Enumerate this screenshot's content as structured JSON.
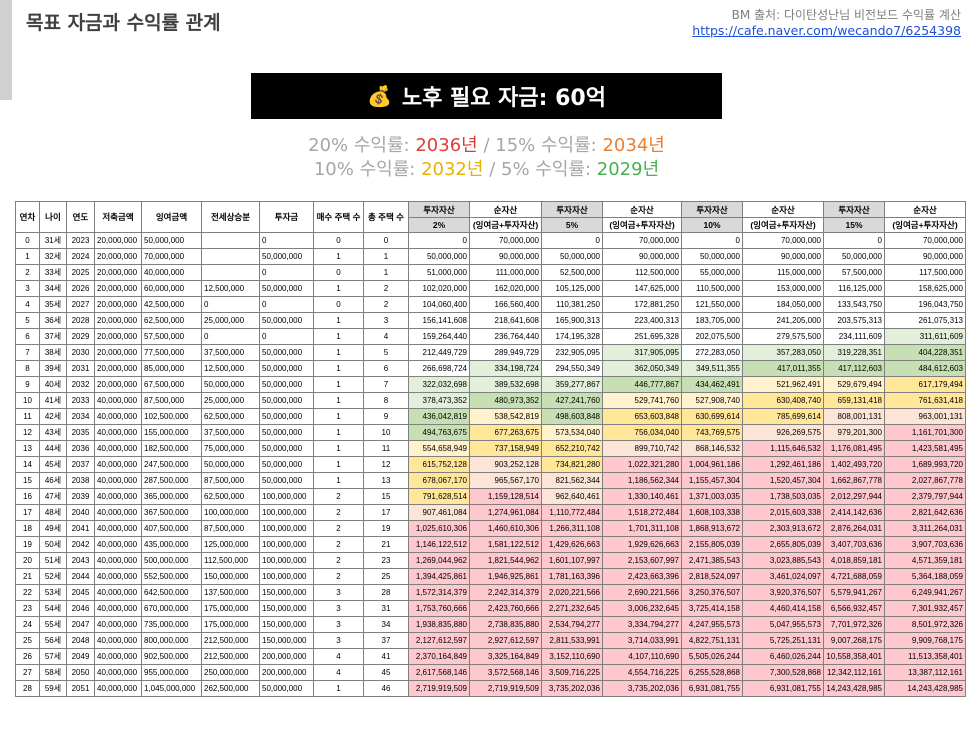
{
  "header": {
    "title": "목표 자금과 수익률 관계",
    "source_line": "BM 출처: 다이탄성난님 비전보드 수익률 계산",
    "source_url": "https://cafe.naver.com/wecando7/6254398"
  },
  "banner": {
    "icon": "money-bag-icon",
    "text": "노후 필요 자금: 60억"
  },
  "rates": {
    "r20_label": "20% 수익률:",
    "r20_year": "2036년",
    "sep1": "/",
    "r15_label": "15% 수익률:",
    "r15_year": "2034년",
    "r10_label": "10% 수익률:",
    "r10_year": "2032년",
    "sep2": "/",
    "r5_label": "5% 수익률:",
    "r5_year": "2029년",
    "colors": {
      "r20": "#e03b3b",
      "r15": "#ed7d31",
      "r10": "#e8b200",
      "r5": "#4caf50"
    }
  },
  "table": {
    "headers": {
      "year_no": "연차",
      "age": "나이",
      "year": "연도",
      "savings": "저축금액",
      "surplus": "잉여금액",
      "jeonse": "전세상승분",
      "investment": "투자금",
      "houses_bought": "매수 주택 수",
      "total_houses": "총 주택 수",
      "inv_assets": "투자자산",
      "net_assets": "순자산",
      "net_assets_sub": "(잉여금+투자자산)",
      "rate_2": "2%",
      "rate_5": "5%",
      "rate_10": "10%",
      "rate_15": "15%"
    },
    "rows": [
      {
        "c": [
          "0",
          "31세",
          "2023",
          "20,000,000",
          "50,000,000",
          "",
          "0",
          "0",
          "0",
          "0",
          "70,000,000",
          "0",
          "70,000,000",
          "0",
          "70,000,000",
          "0",
          "70,000,000"
        ]
      },
      {
        "c": [
          "1",
          "32세",
          "2024",
          "20,000,000",
          "70,000,000",
          "",
          "50,000,000",
          "1",
          "1",
          "50,000,000",
          "90,000,000",
          "50,000,000",
          "90,000,000",
          "50,000,000",
          "90,000,000",
          "50,000,000",
          "90,000,000"
        ]
      },
      {
        "c": [
          "2",
          "33세",
          "2025",
          "20,000,000",
          "40,000,000",
          "",
          "0",
          "0",
          "1",
          "51,000,000",
          "111,000,000",
          "52,500,000",
          "112,500,000",
          "55,000,000",
          "115,000,000",
          "57,500,000",
          "117,500,000"
        ]
      },
      {
        "c": [
          "3",
          "34세",
          "2026",
          "20,000,000",
          "60,000,000",
          "12,500,000",
          "50,000,000",
          "1",
          "2",
          "102,020,000",
          "162,020,000",
          "105,125,000",
          "147,625,000",
          "110,500,000",
          "153,000,000",
          "116,125,000",
          "158,625,000"
        ]
      },
      {
        "c": [
          "4",
          "35세",
          "2027",
          "20,000,000",
          "42,500,000",
          "0",
          "0",
          "0",
          "2",
          "104,060,400",
          "166,560,400",
          "110,381,250",
          "172,881,250",
          "121,550,000",
          "184,050,000",
          "133,543,750",
          "196,043,750"
        ]
      },
      {
        "c": [
          "5",
          "36세",
          "2028",
          "20,000,000",
          "62,500,000",
          "25,000,000",
          "50,000,000",
          "1",
          "3",
          "156,141,608",
          "218,641,608",
          "165,900,313",
          "223,400,313",
          "183,705,000",
          "241,205,000",
          "203,575,313",
          "261,075,313"
        ]
      },
      {
        "c": [
          "6",
          "37세",
          "2029",
          "20,000,000",
          "57,500,000",
          "0",
          "0",
          "1",
          "4",
          "159,264,440",
          "236,764,440",
          "174,195,328",
          "251,695,328",
          "202,075,500",
          "279,575,500",
          "234,111,609",
          "311,611,609"
        ]
      },
      {
        "c": [
          "7",
          "38세",
          "2030",
          "20,000,000",
          "77,500,000",
          "37,500,000",
          "50,000,000",
          "1",
          "5",
          "212,449,729",
          "289,949,729",
          "232,905,095",
          "317,905,095",
          "272,283,050",
          "357,283,050",
          "319,228,351",
          "404,228,351"
        ]
      },
      {
        "c": [
          "8",
          "39세",
          "2031",
          "20,000,000",
          "85,000,000",
          "12,500,000",
          "50,000,000",
          "1",
          "6",
          "266,698,724",
          "334,198,724",
          "294,550,349",
          "362,050,349",
          "349,511,355",
          "417,011,355",
          "417,112,603",
          "484,612,603"
        ]
      },
      {
        "c": [
          "9",
          "40세",
          "2032",
          "20,000,000",
          "67,500,000",
          "50,000,000",
          "50,000,000",
          "1",
          "7",
          "322,032,698",
          "389,532,698",
          "359,277,867",
          "446,777,867",
          "434,462,491",
          "521,962,491",
          "529,679,494",
          "617,179,494"
        ]
      },
      {
        "c": [
          "10",
          "41세",
          "2033",
          "40,000,000",
          "87,500,000",
          "25,000,000",
          "50,000,000",
          "1",
          "8",
          "378,473,352",
          "480,973,352",
          "427,241,760",
          "529,741,760",
          "527,908,740",
          "630,408,740",
          "659,131,418",
          "761,631,418"
        ]
      },
      {
        "c": [
          "11",
          "42세",
          "2034",
          "40,000,000",
          "102,500,000",
          "62,500,000",
          "50,000,000",
          "1",
          "9",
          "436,042,819",
          "538,542,819",
          "498,603,848",
          "653,603,848",
          "630,699,614",
          "785,699,614",
          "808,001,131",
          "963,001,131"
        ]
      },
      {
        "c": [
          "12",
          "43세",
          "2035",
          "40,000,000",
          "155,000,000",
          "37,500,000",
          "50,000,000",
          "1",
          "10",
          "494,763,675",
          "677,263,675",
          "573,534,040",
          "756,034,040",
          "743,769,575",
          "926,269,575",
          "979,201,300",
          "1,161,701,300"
        ]
      },
      {
        "c": [
          "13",
          "44세",
          "2036",
          "40,000,000",
          "182,500,000",
          "75,000,000",
          "50,000,000",
          "1",
          "11",
          "554,658,949",
          "737,158,949",
          "652,210,742",
          "899,710,742",
          "868,146,532",
          "1,115,646,532",
          "1,176,081,495",
          "1,423,581,495"
        ]
      },
      {
        "c": [
          "14",
          "45세",
          "2037",
          "40,000,000",
          "247,500,000",
          "50,000,000",
          "50,000,000",
          "1",
          "12",
          "615,752,128",
          "903,252,128",
          "734,821,280",
          "1,022,321,280",
          "1,004,961,186",
          "1,292,461,186",
          "1,402,493,720",
          "1,689,993,720"
        ]
      },
      {
        "c": [
          "15",
          "46세",
          "2038",
          "40,000,000",
          "287,500,000",
          "87,500,000",
          "50,000,000",
          "1",
          "13",
          "678,067,170",
          "965,567,170",
          "821,562,344",
          "1,186,562,344",
          "1,155,457,304",
          "1,520,457,304",
          "1,662,867,778",
          "2,027,867,778"
        ]
      },
      {
        "c": [
          "16",
          "47세",
          "2039",
          "40,000,000",
          "365,000,000",
          "62,500,000",
          "100,000,000",
          "2",
          "15",
          "791,628,514",
          "1,159,128,514",
          "962,640,461",
          "1,330,140,461",
          "1,371,003,035",
          "1,738,503,035",
          "2,012,297,944",
          "2,379,797,944"
        ]
      },
      {
        "c": [
          "17",
          "48세",
          "2040",
          "40,000,000",
          "367,500,000",
          "100,000,000",
          "100,000,000",
          "2",
          "17",
          "907,461,084",
          "1,274,961,084",
          "1,110,772,484",
          "1,518,272,484",
          "1,608,103,338",
          "2,015,603,338",
          "2,414,142,636",
          "2,821,642,636"
        ]
      },
      {
        "c": [
          "18",
          "49세",
          "2041",
          "40,000,000",
          "407,500,000",
          "87,500,000",
          "100,000,000",
          "2",
          "19",
          "1,025,610,306",
          "1,460,610,306",
          "1,266,311,108",
          "1,701,311,108",
          "1,868,913,672",
          "2,303,913,672",
          "2,876,264,031",
          "3,311,264,031"
        ]
      },
      {
        "c": [
          "19",
          "50세",
          "2042",
          "40,000,000",
          "435,000,000",
          "125,000,000",
          "100,000,000",
          "2",
          "21",
          "1,146,122,512",
          "1,581,122,512",
          "1,429,626,663",
          "1,929,626,663",
          "2,155,805,039",
          "2,655,805,039",
          "3,407,703,636",
          "3,907,703,636"
        ]
      },
      {
        "c": [
          "20",
          "51세",
          "2043",
          "40,000,000",
          "500,000,000",
          "112,500,000",
          "100,000,000",
          "2",
          "23",
          "1,269,044,962",
          "1,821,544,962",
          "1,601,107,997",
          "2,153,607,997",
          "2,471,385,543",
          "3,023,885,543",
          "4,018,859,181",
          "4,571,359,181"
        ]
      },
      {
        "c": [
          "21",
          "52세",
          "2044",
          "40,000,000",
          "552,500,000",
          "150,000,000",
          "100,000,000",
          "2",
          "25",
          "1,394,425,861",
          "1,946,925,861",
          "1,781,163,396",
          "2,423,663,396",
          "2,818,524,097",
          "3,461,024,097",
          "4,721,688,059",
          "5,364,188,059"
        ]
      },
      {
        "c": [
          "22",
          "53세",
          "2045",
          "40,000,000",
          "642,500,000",
          "137,500,000",
          "150,000,000",
          "3",
          "28",
          "1,572,314,379",
          "2,242,314,379",
          "2,020,221,566",
          "2,690,221,566",
          "3,250,376,507",
          "3,920,376,507",
          "5,579,941,267",
          "6,249,941,267"
        ]
      },
      {
        "c": [
          "23",
          "54세",
          "2046",
          "40,000,000",
          "670,000,000",
          "175,000,000",
          "150,000,000",
          "3",
          "31",
          "1,753,760,666",
          "2,423,760,666",
          "2,271,232,645",
          "3,006,232,645",
          "3,725,414,158",
          "4,460,414,158",
          "6,566,932,457",
          "7,301,932,457"
        ]
      },
      {
        "c": [
          "24",
          "55세",
          "2047",
          "40,000,000",
          "735,000,000",
          "175,000,000",
          "150,000,000",
          "3",
          "34",
          "1,938,835,880",
          "2,738,835,880",
          "2,534,794,277",
          "3,334,794,277",
          "4,247,955,573",
          "5,047,955,573",
          "7,701,972,326",
          "8,501,972,326"
        ]
      },
      {
        "c": [
          "25",
          "56세",
          "2048",
          "40,000,000",
          "800,000,000",
          "212,500,000",
          "150,000,000",
          "3",
          "37",
          "2,127,612,597",
          "2,927,612,597",
          "2,811,533,991",
          "3,714,033,991",
          "4,822,751,131",
          "5,725,251,131",
          "9,007,268,175",
          "9,909,768,175"
        ]
      },
      {
        "c": [
          "26",
          "57세",
          "2049",
          "40,000,000",
          "902,500,000",
          "212,500,000",
          "200,000,000",
          "4",
          "41",
          "2,370,164,849",
          "3,325,164,849",
          "3,152,110,690",
          "4,107,110,690",
          "5,505,026,244",
          "6,460,026,244",
          "10,558,358,401",
          "11,513,358,401"
        ]
      },
      {
        "c": [
          "27",
          "58세",
          "2050",
          "40,000,000",
          "955,000,000",
          "250,000,000",
          "200,000,000",
          "4",
          "45",
          "2,617,568,146",
          "3,572,568,146",
          "3,509,716,225",
          "4,554,716,225",
          "6,255,528,868",
          "7,300,528,868",
          "12,342,112,161",
          "13,387,112,161"
        ]
      },
      {
        "c": [
          "28",
          "59세",
          "2051",
          "40,000,000",
          "1,045,000,000",
          "262,500,000",
          "50,000,000",
          "1",
          "46",
          "2,719,919,509",
          "2,719,919,509",
          "3,735,202,036",
          "3,735,202,036",
          "6,931,081,755",
          "6,931,081,755",
          "14,243,428,985",
          "14,243,428,985"
        ]
      }
    ]
  }
}
